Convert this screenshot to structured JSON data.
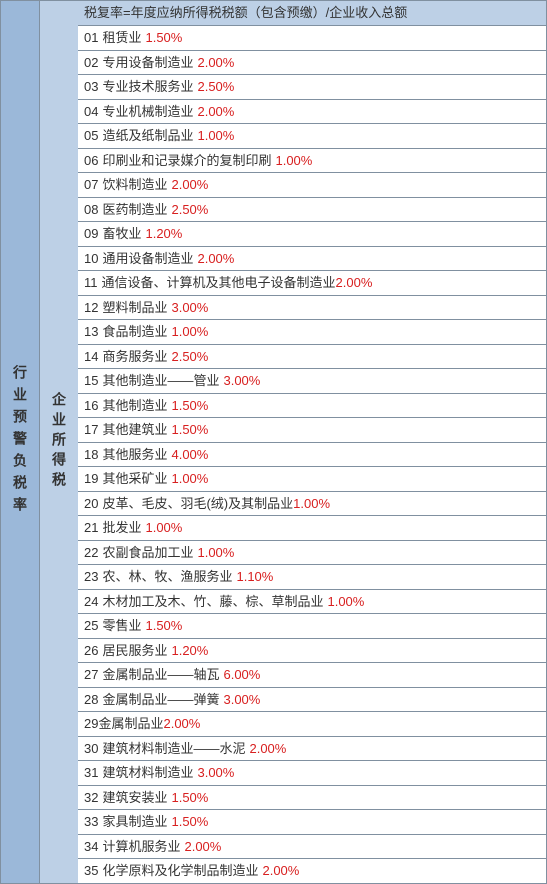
{
  "col1_label": "行业预警负税率",
  "col2_label": "企业所得税",
  "header": "税复率=年度应纳所得税税额（包含预缴）/企业收入总额",
  "colors": {
    "col1_bg": "#9bb8d9",
    "col2_bg": "#bdd0e6",
    "header_bg": "#bdd0e6",
    "border": "#8090a0",
    "text": "#333333",
    "rate": "#d82020"
  },
  "rows": [
    {
      "num": "01",
      "label": "租赁业",
      "rate": "1.50%"
    },
    {
      "num": "02",
      "label": "专用设备制造业",
      "rate": "2.00%"
    },
    {
      "num": "03",
      "label": "专业技术服务业",
      "rate": "2.50%"
    },
    {
      "num": "04",
      "label": "专业机械制造业",
      "rate": "2.00%"
    },
    {
      "num": "05",
      "label": "造纸及纸制品业",
      "rate": "1.00%"
    },
    {
      "num": "06",
      "label": "印刷业和记录媒介的复制印刷",
      "rate": "1.00%"
    },
    {
      "num": "07",
      "label": "饮料制造业",
      "rate": "2.00%"
    },
    {
      "num": "08",
      "label": "医药制造业",
      "rate": "2.50%"
    },
    {
      "num": "09",
      "label": "畜牧业",
      "rate": "1.20%"
    },
    {
      "num": "10",
      "label": "通用设备制造业",
      "rate": "2.00%"
    },
    {
      "num": "11",
      "label": "通信设备、计算机及其他电子设备制造业",
      "rate": "2.00%",
      "nospace": true
    },
    {
      "num": "12",
      "label": "塑料制品业",
      "rate": "3.00%"
    },
    {
      "num": "13",
      "label": "食品制造业",
      "rate": "1.00%"
    },
    {
      "num": "14",
      "label": "商务服务业",
      "rate": "2.50%"
    },
    {
      "num": "15",
      "label": "其他制造业——管业",
      "rate": "3.00%"
    },
    {
      "num": "16",
      "label": "其他制造业",
      "rate": "1.50%"
    },
    {
      "num": "17",
      "label": "其他建筑业",
      "rate": "1.50%"
    },
    {
      "num": "18",
      "label": "其他服务业",
      "rate": "4.00%"
    },
    {
      "num": "19",
      "label": "其他采矿业",
      "rate": "1.00%"
    },
    {
      "num": "20",
      "label": "皮革、毛皮、羽毛(绒)及其制品业",
      "rate": "1.00%",
      "nospace": true
    },
    {
      "num": "21",
      "label": "批发业",
      "rate": "1.00%"
    },
    {
      "num": "22",
      "label": "农副食品加工业",
      "rate": "1.00%"
    },
    {
      "num": "23",
      "label": "农、林、牧、渔服务业",
      "rate": "1.10%"
    },
    {
      "num": "24",
      "label": "木材加工及木、竹、藤、棕、草制品业",
      "rate": "1.00%"
    },
    {
      "num": "25",
      "label": "零售业",
      "rate": "1.50%"
    },
    {
      "num": "26",
      "label": "居民服务业",
      "rate": "1.20%"
    },
    {
      "num": "27",
      "label": "金属制品业——轴瓦",
      "rate": "6.00%"
    },
    {
      "num": "28",
      "label": "金属制品业——弹簧",
      "rate": "3.00%"
    },
    {
      "num": "29",
      "label": "金属制品业",
      "rate": "2.00%",
      "nonumspace": true
    },
    {
      "num": "30",
      "label": "建筑材料制造业——水泥",
      "rate": "2.00%"
    },
    {
      "num": "31",
      "label": "建筑材料制造业",
      "rate": "3.00%"
    },
    {
      "num": "32",
      "label": "建筑安装业",
      "rate": "1.50%"
    },
    {
      "num": "33",
      "label": "家具制造业",
      "rate": "1.50%"
    },
    {
      "num": "34",
      "label": "计算机服务业",
      "rate": "2.00%"
    },
    {
      "num": "35",
      "label": "化学原料及化学制品制造业",
      "rate": "2.00%"
    }
  ]
}
